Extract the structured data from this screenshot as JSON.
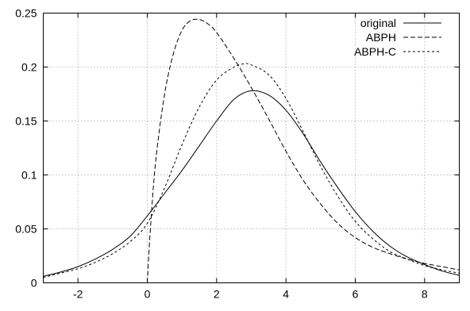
{
  "chart_data": {
    "type": "line",
    "title": "",
    "xlabel": "",
    "ylabel": "",
    "xlim": [
      -3,
      9
    ],
    "ylim": [
      0,
      0.25
    ],
    "grid": true,
    "legend_position": "top-right",
    "x_ticks": [
      -2,
      0,
      2,
      4,
      6,
      8
    ],
    "y_ticks": [
      0,
      0.05,
      0.1,
      0.15,
      0.2,
      0.25
    ],
    "x_tick_labels": [
      "-2",
      "0",
      "2",
      "4",
      "6",
      "8"
    ],
    "y_tick_labels": [
      "0",
      "0.05",
      "0.1",
      "0.15",
      "0.2",
      "0.25"
    ],
    "series": [
      {
        "name": "original",
        "dash": "solid",
        "x": [
          -3,
          -2.5,
          -2,
          -1.5,
          -1,
          -0.5,
          0,
          0.5,
          1,
          1.5,
          2,
          2.5,
          3,
          3.5,
          4,
          4.5,
          5,
          5.5,
          6,
          6.5,
          7,
          7.5,
          8,
          8.5,
          9
        ],
        "y": [
          0.006,
          0.01,
          0.015,
          0.022,
          0.031,
          0.043,
          0.062,
          0.083,
          0.104,
          0.127,
          0.15,
          0.17,
          0.178,
          0.174,
          0.16,
          0.138,
          0.112,
          0.088,
          0.066,
          0.048,
          0.034,
          0.024,
          0.017,
          0.011,
          0.007
        ]
      },
      {
        "name": "ABPH",
        "dash": "long",
        "x": [
          0,
          0.1,
          0.25,
          0.5,
          0.75,
          1,
          1.25,
          1.5,
          1.75,
          2,
          2.5,
          3,
          3.5,
          4,
          4.5,
          5,
          5.5,
          6,
          6.5,
          7,
          7.5,
          8,
          8.5,
          9
        ],
        "y": [
          0,
          0.055,
          0.115,
          0.175,
          0.212,
          0.234,
          0.243,
          0.244,
          0.24,
          0.232,
          0.208,
          0.181,
          0.152,
          0.122,
          0.095,
          0.073,
          0.055,
          0.042,
          0.033,
          0.027,
          0.022,
          0.018,
          0.015,
          0.012
        ]
      },
      {
        "name": "ABPH-C",
        "dash": "short",
        "x": [
          -3,
          -2.5,
          -2,
          -1.5,
          -1,
          -0.5,
          0,
          0.5,
          1,
          1.5,
          2,
          2.5,
          2.8,
          3,
          3.5,
          4,
          4.5,
          5,
          5.5,
          6,
          6.5,
          7,
          7.5,
          8,
          8.5,
          9
        ],
        "y": [
          0.005,
          0.009,
          0.013,
          0.019,
          0.027,
          0.038,
          0.055,
          0.088,
          0.128,
          0.163,
          0.188,
          0.2,
          0.203,
          0.202,
          0.193,
          0.171,
          0.14,
          0.108,
          0.08,
          0.057,
          0.041,
          0.029,
          0.022,
          0.016,
          0.012,
          0.009
        ]
      }
    ]
  }
}
